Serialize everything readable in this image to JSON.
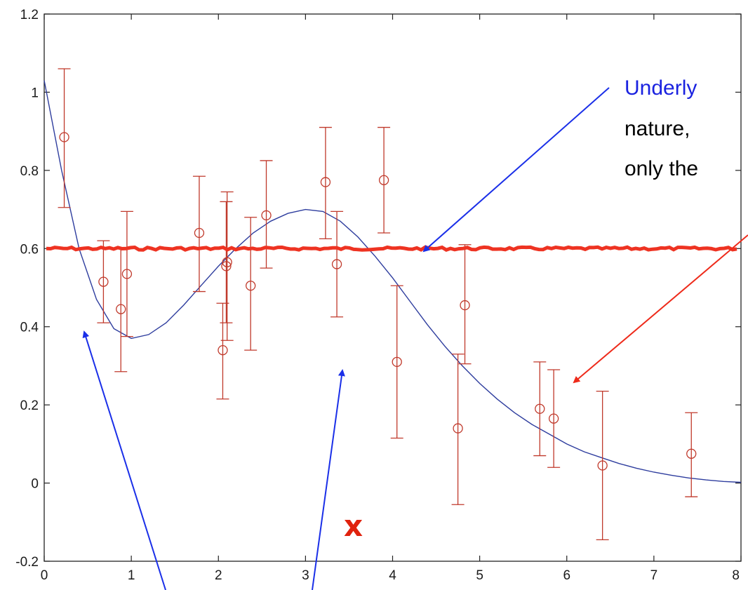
{
  "chart_data": {
    "type": "scatter",
    "xlim": [
      0,
      8
    ],
    "ylim": [
      -0.2,
      1.2
    ],
    "x_ticks": [
      0,
      1,
      2,
      3,
      4,
      5,
      6,
      7,
      8
    ],
    "y_ticks": [
      -0.2,
      0,
      0.2,
      0.4,
      0.6,
      0.8,
      1,
      1.2
    ],
    "x_tick_labels": [
      "0",
      "1",
      "2",
      "3",
      "4",
      "5",
      "6",
      "7",
      "8"
    ],
    "y_tick_labels": [
      "-0.2",
      "0",
      "0.2",
      "0.4",
      "0.6",
      "0.8",
      "1",
      "1.2"
    ],
    "grid": false,
    "points": [
      {
        "x": 0.23,
        "y": 0.885,
        "lo": 0.705,
        "hi": 1.06
      },
      {
        "x": 0.68,
        "y": 0.515,
        "lo": 0.41,
        "hi": 0.62
      },
      {
        "x": 0.88,
        "y": 0.445,
        "lo": 0.285,
        "hi": 0.6
      },
      {
        "x": 0.95,
        "y": 0.535,
        "lo": 0.375,
        "hi": 0.695
      },
      {
        "x": 1.78,
        "y": 0.64,
        "lo": 0.49,
        "hi": 0.785
      },
      {
        "x": 2.05,
        "y": 0.34,
        "lo": 0.215,
        "hi": 0.46
      },
      {
        "x": 2.09,
        "y": 0.555,
        "lo": 0.41,
        "hi": 0.72
      },
      {
        "x": 2.1,
        "y": 0.565,
        "lo": 0.365,
        "hi": 0.745
      },
      {
        "x": 2.37,
        "y": 0.505,
        "lo": 0.34,
        "hi": 0.68
      },
      {
        "x": 2.55,
        "y": 0.685,
        "lo": 0.55,
        "hi": 0.825
      },
      {
        "x": 3.23,
        "y": 0.77,
        "lo": 0.625,
        "hi": 0.91
      },
      {
        "x": 3.36,
        "y": 0.56,
        "lo": 0.425,
        "hi": 0.695
      },
      {
        "x": 3.9,
        "y": 0.775,
        "lo": 0.64,
        "hi": 0.91
      },
      {
        "x": 4.05,
        "y": 0.31,
        "lo": 0.115,
        "hi": 0.505
      },
      {
        "x": 4.75,
        "y": 0.14,
        "lo": -0.055,
        "hi": 0.33
      },
      {
        "x": 4.83,
        "y": 0.455,
        "lo": 0.305,
        "hi": 0.61
      },
      {
        "x": 5.69,
        "y": 0.19,
        "lo": 0.07,
        "hi": 0.31
      },
      {
        "x": 5.85,
        "y": 0.165,
        "lo": 0.04,
        "hi": 0.29
      },
      {
        "x": 6.41,
        "y": 0.045,
        "lo": -0.145,
        "hi": 0.235
      },
      {
        "x": 7.43,
        "y": 0.075,
        "lo": -0.035,
        "hi": 0.18
      }
    ],
    "curve": {
      "x": [
        0,
        0.2,
        0.4,
        0.6,
        0.8,
        1.0,
        1.2,
        1.4,
        1.6,
        1.8,
        2.0,
        2.2,
        2.4,
        2.6,
        2.8,
        3.0,
        3.2,
        3.4,
        3.6,
        3.8,
        4.0,
        4.2,
        4.4,
        4.6,
        4.8,
        5.0,
        5.2,
        5.4,
        5.6,
        5.8,
        6.0,
        6.2,
        6.4,
        6.6,
        6.8,
        7.0,
        7.2,
        7.4,
        7.6,
        7.8,
        8.0
      ],
      "y": [
        1.03,
        0.8,
        0.6,
        0.47,
        0.395,
        0.37,
        0.38,
        0.41,
        0.455,
        0.505,
        0.555,
        0.6,
        0.64,
        0.67,
        0.69,
        0.7,
        0.695,
        0.67,
        0.63,
        0.58,
        0.525,
        0.465,
        0.405,
        0.35,
        0.3,
        0.255,
        0.215,
        0.18,
        0.15,
        0.125,
        0.1,
        0.08,
        0.065,
        0.05,
        0.038,
        0.028,
        0.02,
        0.013,
        0.008,
        0.004,
        0.002
      ]
    },
    "hline_y": 0.6,
    "annotation_lines": [
      "Underly",
      "nature,",
      "only the"
    ],
    "x_marker": "x",
    "colors": {
      "points": "#c0392b",
      "curve": "#2e3d9e",
      "hline": "#ee3322",
      "blue_arrow": "#1a2fe8",
      "red_arrow": "#ee2a1a",
      "annotation_blue": "#1a22e0",
      "annotation_black": "#000000",
      "x_marker": "#e0220e"
    }
  }
}
